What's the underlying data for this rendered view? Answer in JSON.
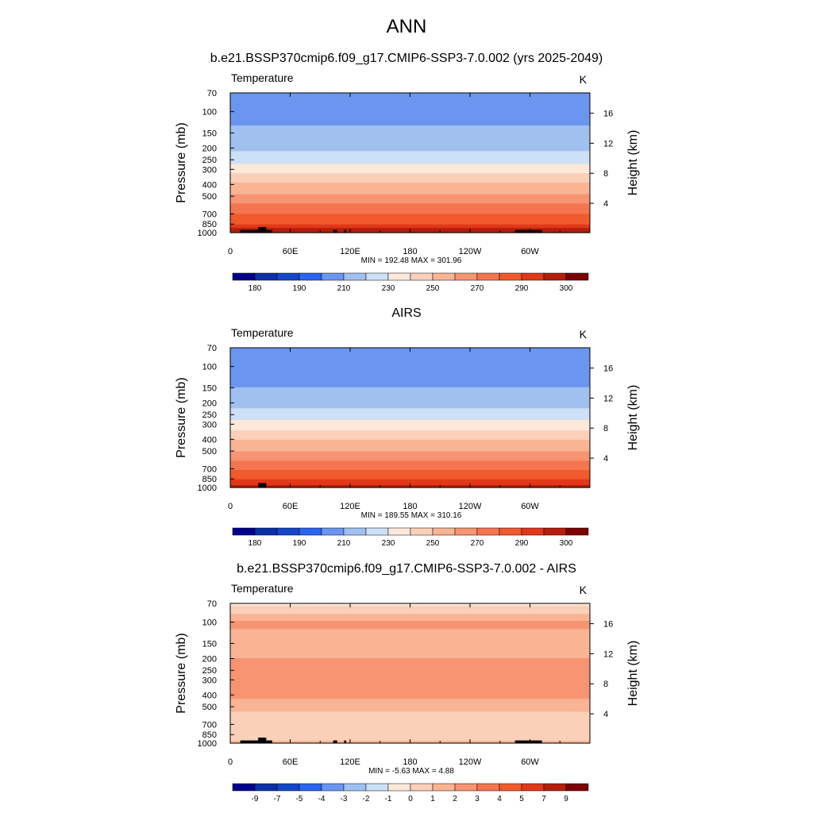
{
  "figure_title": "ANN",
  "colors": {
    "temp_scale": [
      "#00008b",
      "#0a30a8",
      "#1446c8",
      "#2a64f0",
      "#6a96f0",
      "#a0c0f0",
      "#cce0f8",
      "#fde9da",
      "#fbd0b8",
      "#f9b494",
      "#f79472",
      "#f57550",
      "#f05a2c",
      "#e03818",
      "#b41e0a",
      "#7c0000"
    ],
    "diff_scale": [
      "#00008b",
      "#0a30a8",
      "#1446c8",
      "#2a64f0",
      "#6a96f0",
      "#a0c0f0",
      "#cce0f8",
      "#fde9da",
      "#fbd0b8",
      "#f9b494",
      "#f79472",
      "#f57550",
      "#f05a2c",
      "#e03818",
      "#b41e0a",
      "#7c0000"
    ],
    "topography": "#000000"
  },
  "chart_data": [
    {
      "type": "heatmap",
      "title": "b.e21.BSSP370cmip6.f09_g17.CMIP6-SSP3-7.0.002 (yrs 2025-2049)",
      "variable_label": "Temperature",
      "units_label": "K",
      "ylabel": "Pressure (mb)",
      "y2label": "Height (km)",
      "x_ticks": [
        "0",
        "60E",
        "120E",
        "180",
        "120W",
        "60W"
      ],
      "x_range": [
        0,
        360
      ],
      "y_ticks": [
        "70",
        "100",
        "150",
        "200",
        "250",
        "300",
        "400",
        "500",
        "700",
        "850",
        "1000"
      ],
      "y_range_mb": [
        70,
        1000
      ],
      "y_scale": "log",
      "y2_ticks": [
        "4",
        "8",
        "12",
        "16"
      ],
      "stats": "MIN = 192.48  MAX = 301.96",
      "colorbar_labels": [
        "180",
        "190",
        "210",
        "230",
        "250",
        "270",
        "290",
        "300"
      ],
      "colorbar_levels": [
        175,
        180,
        185,
        190,
        200,
        210,
        220,
        230,
        240,
        250,
        260,
        270,
        280,
        290,
        295,
        300
      ],
      "profile": {
        "pressure_mb": [
          70,
          100,
          150,
          200,
          250,
          300,
          400,
          500,
          700,
          850,
          1000
        ],
        "temperature_k": [
          204,
          206,
          212,
          218,
          226,
          236,
          252,
          262,
          280,
          290,
          300
        ]
      },
      "topography": true
    },
    {
      "type": "heatmap",
      "title": "AIRS",
      "variable_label": "Temperature",
      "units_label": "K",
      "ylabel": "Pressure (mb)",
      "y2label": "Height (km)",
      "x_ticks": [
        "0",
        "60E",
        "120E",
        "180",
        "120W",
        "60W"
      ],
      "x_range": [
        0,
        360
      ],
      "y_ticks": [
        "70",
        "100",
        "150",
        "200",
        "250",
        "300",
        "400",
        "500",
        "700",
        "850",
        "1000"
      ],
      "y_range_mb": [
        70,
        1000
      ],
      "y_scale": "log",
      "y2_ticks": [
        "4",
        "8",
        "12",
        "16"
      ],
      "stats": "MIN = 189.55  MAX = 310.16",
      "colorbar_labels": [
        "180",
        "190",
        "210",
        "230",
        "250",
        "270",
        "290",
        "300"
      ],
      "colorbar_levels": [
        175,
        180,
        185,
        190,
        200,
        210,
        220,
        230,
        240,
        250,
        260,
        270,
        280,
        290,
        295,
        300
      ],
      "profile": {
        "pressure_mb": [
          70,
          100,
          150,
          200,
          250,
          300,
          400,
          500,
          700,
          850,
          1000
        ],
        "temperature_k": [
          203,
          204,
          210,
          216,
          224,
          234,
          250,
          260,
          279,
          289,
          298
        ]
      },
      "topography": true
    },
    {
      "type": "heatmap",
      "title": "b.e21.BSSP370cmip6.f09_g17.CMIP6-SSP3-7.0.002 - AIRS",
      "variable_label": "Temperature",
      "units_label": "K",
      "ylabel": "Pressure (mb)",
      "y2label": "Height (km)",
      "x_ticks": [
        "0",
        "60E",
        "120E",
        "180",
        "120W",
        "60W"
      ],
      "x_range": [
        0,
        360
      ],
      "y_ticks": [
        "70",
        "100",
        "150",
        "200",
        "250",
        "300",
        "400",
        "500",
        "700",
        "850",
        "1000"
      ],
      "y_range_mb": [
        70,
        1000
      ],
      "y_scale": "log",
      "y2_ticks": [
        "4",
        "8",
        "12",
        "16"
      ],
      "stats": "MIN =  -5.63  MAX =   4.88",
      "colorbar_labels": [
        "-9",
        "-7",
        "-5",
        "-4",
        "-3",
        "-2",
        "-1",
        "0",
        "1",
        "2",
        "3",
        "4",
        "5",
        "7",
        "9"
      ],
      "colorbar_levels": [
        -10,
        -8,
        -6,
        -4.5,
        -3.5,
        -2.5,
        -1.5,
        -0.5,
        0.5,
        1.5,
        2.5,
        3.5,
        4.5,
        6,
        8,
        10
      ],
      "profile": {
        "pressure_mb": [
          70,
          80,
          100,
          150,
          200,
          300,
          400,
          500,
          700,
          850,
          1000
        ],
        "difference_k": [
          0.2,
          1.0,
          2.6,
          2.3,
          2.5,
          3.5,
          2.8,
          1.8,
          0.8,
          1.3,
          1.6
        ]
      },
      "topography": true
    }
  ]
}
